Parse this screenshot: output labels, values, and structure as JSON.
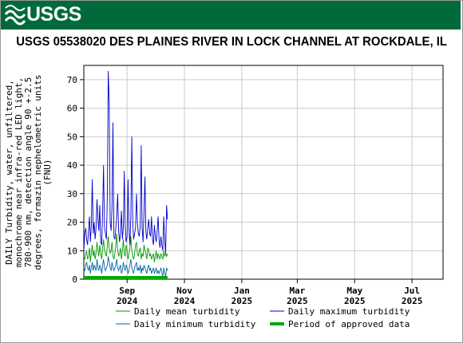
{
  "header": {
    "logo_text": "USGS",
    "title": "USGS 05538020 DES PLAINES RIVER IN LOCK CHANNEL AT ROCKDALE, IL"
  },
  "colors": {
    "banner": "#006a3b",
    "mean": "#009900",
    "max": "#0000cc",
    "min": "#0066aa",
    "approved": "#00aa00",
    "grid": "#cccccc"
  },
  "chart_data": {
    "type": "line",
    "ylabel": "DAILY Turbidity, water, unfiltered, monochrome near infra-red LED light, 780-900 nm, detection angle 90 +-2.5 degrees, formazin nephelometric units (FNU)",
    "ylabel_lines": [
      "DAILY Turbidity, water, unfiltered,",
      "monochrome near infra-red LED light,",
      "780-900 nm, detection angle 90 +-2.5",
      "degrees, formazin nephelometric units",
      "(FNU)"
    ],
    "ylim": [
      0,
      75
    ],
    "yticks": [
      0,
      10,
      20,
      30,
      40,
      50,
      60,
      70
    ],
    "xlim": [
      "2024-07-17",
      "2025-08-03"
    ],
    "xticks": [
      {
        "date": "2024-09-01",
        "line1": "Sep",
        "line2": "2024"
      },
      {
        "date": "2024-11-01",
        "line1": "Nov",
        "line2": "2024"
      },
      {
        "date": "2025-01-01",
        "line1": "Jan",
        "line2": "2025"
      },
      {
        "date": "2025-03-01",
        "line1": "Mar",
        "line2": "2025"
      },
      {
        "date": "2025-05-01",
        "line1": "May",
        "line2": "2025"
      },
      {
        "date": "2025-07-01",
        "line1": "Jul",
        "line2": "2025"
      }
    ],
    "grid": true,
    "legend_position": "bottom",
    "dates_start": "2024-07-17",
    "series": [
      {
        "name": "Daily mean turbidity",
        "key": "mean",
        "values": [
          8,
          7,
          9,
          10,
          7,
          8,
          11,
          6,
          9,
          12,
          8,
          10,
          7,
          9,
          13,
          10,
          8,
          12,
          9,
          7,
          11,
          14,
          10,
          9,
          8,
          12,
          15,
          11,
          9,
          10,
          13,
          8,
          7,
          9,
          12,
          16,
          10,
          8,
          9,
          11,
          7,
          10,
          14,
          9,
          8,
          12,
          10,
          7,
          9,
          11,
          15,
          10,
          8,
          7,
          9,
          12,
          13,
          9,
          8,
          10,
          11,
          7,
          9,
          8,
          12,
          10,
          9,
          7,
          11,
          10,
          8,
          9,
          7,
          8,
          9,
          6,
          8,
          10,
          7,
          9,
          8,
          7,
          9,
          8,
          7,
          10,
          8,
          9,
          8,
          9
        ]
      },
      {
        "name": "Daily maximum turbidity",
        "key": "max",
        "values": [
          10,
          16,
          18,
          14,
          12,
          17,
          22,
          13,
          19,
          35,
          16,
          20,
          14,
          18,
          28,
          21,
          17,
          26,
          13,
          12,
          24,
          40,
          18,
          16,
          14,
          30,
          73,
          62,
          20,
          17,
          25,
          55,
          15,
          14,
          18,
          22,
          30,
          17,
          13,
          16,
          24,
          14,
          18,
          38,
          19,
          13,
          15,
          35,
          18,
          12,
          22,
          50,
          20,
          14,
          16,
          18,
          30,
          20,
          16,
          15,
          19,
          47,
          18,
          13,
          24,
          36,
          17,
          14,
          18,
          21,
          16,
          15,
          22,
          14,
          12,
          19,
          15,
          13,
          17,
          22,
          14,
          11,
          15,
          12,
          10,
          22,
          14,
          9,
          26,
          21
        ]
      },
      {
        "name": "Daily minimum turbidity",
        "key": "min",
        "values": [
          4,
          3,
          5,
          6,
          4,
          3,
          5,
          2,
          4,
          6,
          3,
          5,
          4,
          3,
          7,
          4,
          3,
          5,
          4,
          2,
          5,
          7,
          4,
          3,
          4,
          5,
          8,
          6,
          4,
          3,
          6,
          4,
          3,
          4,
          5,
          7,
          4,
          3,
          4,
          5,
          2,
          3,
          6,
          4,
          3,
          5,
          4,
          2,
          3,
          5,
          7,
          4,
          3,
          2,
          4,
          5,
          6,
          3,
          4,
          3,
          5,
          2,
          4,
          3,
          5,
          4,
          3,
          2,
          4,
          5,
          3,
          4,
          2,
          3,
          4,
          2,
          3,
          4,
          2,
          3,
          2,
          3,
          4,
          2,
          1,
          4,
          2,
          1,
          4,
          3
        ]
      }
    ],
    "approved_period": {
      "name": "Period of approved data",
      "start": "2024-07-17",
      "end": "2024-10-14"
    }
  }
}
